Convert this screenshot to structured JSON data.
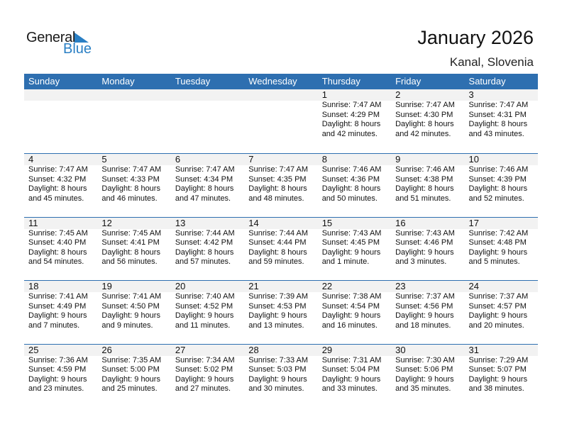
{
  "logo": {
    "general": "General",
    "blue": "Blue"
  },
  "title": "January 2026",
  "subtitle": "Kanal, Slovenia",
  "colors": {
    "header": "#2e6fb0",
    "band": "#f2f2f2",
    "logo_blue": "#2a7fc4"
  },
  "weekdays": [
    "Sunday",
    "Monday",
    "Tuesday",
    "Wednesday",
    "Thursday",
    "Friday",
    "Saturday"
  ],
  "start_offset": 4,
  "days": [
    {
      "d": "1",
      "rise": "Sunrise: 7:47 AM",
      "set": "Sunset: 4:29 PM",
      "dl1": "Daylight: 8 hours",
      "dl2": "and 42 minutes."
    },
    {
      "d": "2",
      "rise": "Sunrise: 7:47 AM",
      "set": "Sunset: 4:30 PM",
      "dl1": "Daylight: 8 hours",
      "dl2": "and 42 minutes."
    },
    {
      "d": "3",
      "rise": "Sunrise: 7:47 AM",
      "set": "Sunset: 4:31 PM",
      "dl1": "Daylight: 8 hours",
      "dl2": "and 43 minutes."
    },
    {
      "d": "4",
      "rise": "Sunrise: 7:47 AM",
      "set": "Sunset: 4:32 PM",
      "dl1": "Daylight: 8 hours",
      "dl2": "and 45 minutes."
    },
    {
      "d": "5",
      "rise": "Sunrise: 7:47 AM",
      "set": "Sunset: 4:33 PM",
      "dl1": "Daylight: 8 hours",
      "dl2": "and 46 minutes."
    },
    {
      "d": "6",
      "rise": "Sunrise: 7:47 AM",
      "set": "Sunset: 4:34 PM",
      "dl1": "Daylight: 8 hours",
      "dl2": "and 47 minutes."
    },
    {
      "d": "7",
      "rise": "Sunrise: 7:47 AM",
      "set": "Sunset: 4:35 PM",
      "dl1": "Daylight: 8 hours",
      "dl2": "and 48 minutes."
    },
    {
      "d": "8",
      "rise": "Sunrise: 7:46 AM",
      "set": "Sunset: 4:36 PM",
      "dl1": "Daylight: 8 hours",
      "dl2": "and 50 minutes."
    },
    {
      "d": "9",
      "rise": "Sunrise: 7:46 AM",
      "set": "Sunset: 4:38 PM",
      "dl1": "Daylight: 8 hours",
      "dl2": "and 51 minutes."
    },
    {
      "d": "10",
      "rise": "Sunrise: 7:46 AM",
      "set": "Sunset: 4:39 PM",
      "dl1": "Daylight: 8 hours",
      "dl2": "and 52 minutes."
    },
    {
      "d": "11",
      "rise": "Sunrise: 7:45 AM",
      "set": "Sunset: 4:40 PM",
      "dl1": "Daylight: 8 hours",
      "dl2": "and 54 minutes."
    },
    {
      "d": "12",
      "rise": "Sunrise: 7:45 AM",
      "set": "Sunset: 4:41 PM",
      "dl1": "Daylight: 8 hours",
      "dl2": "and 56 minutes."
    },
    {
      "d": "13",
      "rise": "Sunrise: 7:44 AM",
      "set": "Sunset: 4:42 PM",
      "dl1": "Daylight: 8 hours",
      "dl2": "and 57 minutes."
    },
    {
      "d": "14",
      "rise": "Sunrise: 7:44 AM",
      "set": "Sunset: 4:44 PM",
      "dl1": "Daylight: 8 hours",
      "dl2": "and 59 minutes."
    },
    {
      "d": "15",
      "rise": "Sunrise: 7:43 AM",
      "set": "Sunset: 4:45 PM",
      "dl1": "Daylight: 9 hours",
      "dl2": "and 1 minute."
    },
    {
      "d": "16",
      "rise": "Sunrise: 7:43 AM",
      "set": "Sunset: 4:46 PM",
      "dl1": "Daylight: 9 hours",
      "dl2": "and 3 minutes."
    },
    {
      "d": "17",
      "rise": "Sunrise: 7:42 AM",
      "set": "Sunset: 4:48 PM",
      "dl1": "Daylight: 9 hours",
      "dl2": "and 5 minutes."
    },
    {
      "d": "18",
      "rise": "Sunrise: 7:41 AM",
      "set": "Sunset: 4:49 PM",
      "dl1": "Daylight: 9 hours",
      "dl2": "and 7 minutes."
    },
    {
      "d": "19",
      "rise": "Sunrise: 7:41 AM",
      "set": "Sunset: 4:50 PM",
      "dl1": "Daylight: 9 hours",
      "dl2": "and 9 minutes."
    },
    {
      "d": "20",
      "rise": "Sunrise: 7:40 AM",
      "set": "Sunset: 4:52 PM",
      "dl1": "Daylight: 9 hours",
      "dl2": "and 11 minutes."
    },
    {
      "d": "21",
      "rise": "Sunrise: 7:39 AM",
      "set": "Sunset: 4:53 PM",
      "dl1": "Daylight: 9 hours",
      "dl2": "and 13 minutes."
    },
    {
      "d": "22",
      "rise": "Sunrise: 7:38 AM",
      "set": "Sunset: 4:54 PM",
      "dl1": "Daylight: 9 hours",
      "dl2": "and 16 minutes."
    },
    {
      "d": "23",
      "rise": "Sunrise: 7:37 AM",
      "set": "Sunset: 4:56 PM",
      "dl1": "Daylight: 9 hours",
      "dl2": "and 18 minutes."
    },
    {
      "d": "24",
      "rise": "Sunrise: 7:37 AM",
      "set": "Sunset: 4:57 PM",
      "dl1": "Daylight: 9 hours",
      "dl2": "and 20 minutes."
    },
    {
      "d": "25",
      "rise": "Sunrise: 7:36 AM",
      "set": "Sunset: 4:59 PM",
      "dl1": "Daylight: 9 hours",
      "dl2": "and 23 minutes."
    },
    {
      "d": "26",
      "rise": "Sunrise: 7:35 AM",
      "set": "Sunset: 5:00 PM",
      "dl1": "Daylight: 9 hours",
      "dl2": "and 25 minutes."
    },
    {
      "d": "27",
      "rise": "Sunrise: 7:34 AM",
      "set": "Sunset: 5:02 PM",
      "dl1": "Daylight: 9 hours",
      "dl2": "and 27 minutes."
    },
    {
      "d": "28",
      "rise": "Sunrise: 7:33 AM",
      "set": "Sunset: 5:03 PM",
      "dl1": "Daylight: 9 hours",
      "dl2": "and 30 minutes."
    },
    {
      "d": "29",
      "rise": "Sunrise: 7:31 AM",
      "set": "Sunset: 5:04 PM",
      "dl1": "Daylight: 9 hours",
      "dl2": "and 33 minutes."
    },
    {
      "d": "30",
      "rise": "Sunrise: 7:30 AM",
      "set": "Sunset: 5:06 PM",
      "dl1": "Daylight: 9 hours",
      "dl2": "and 35 minutes."
    },
    {
      "d": "31",
      "rise": "Sunrise: 7:29 AM",
      "set": "Sunset: 5:07 PM",
      "dl1": "Daylight: 9 hours",
      "dl2": "and 38 minutes."
    }
  ]
}
